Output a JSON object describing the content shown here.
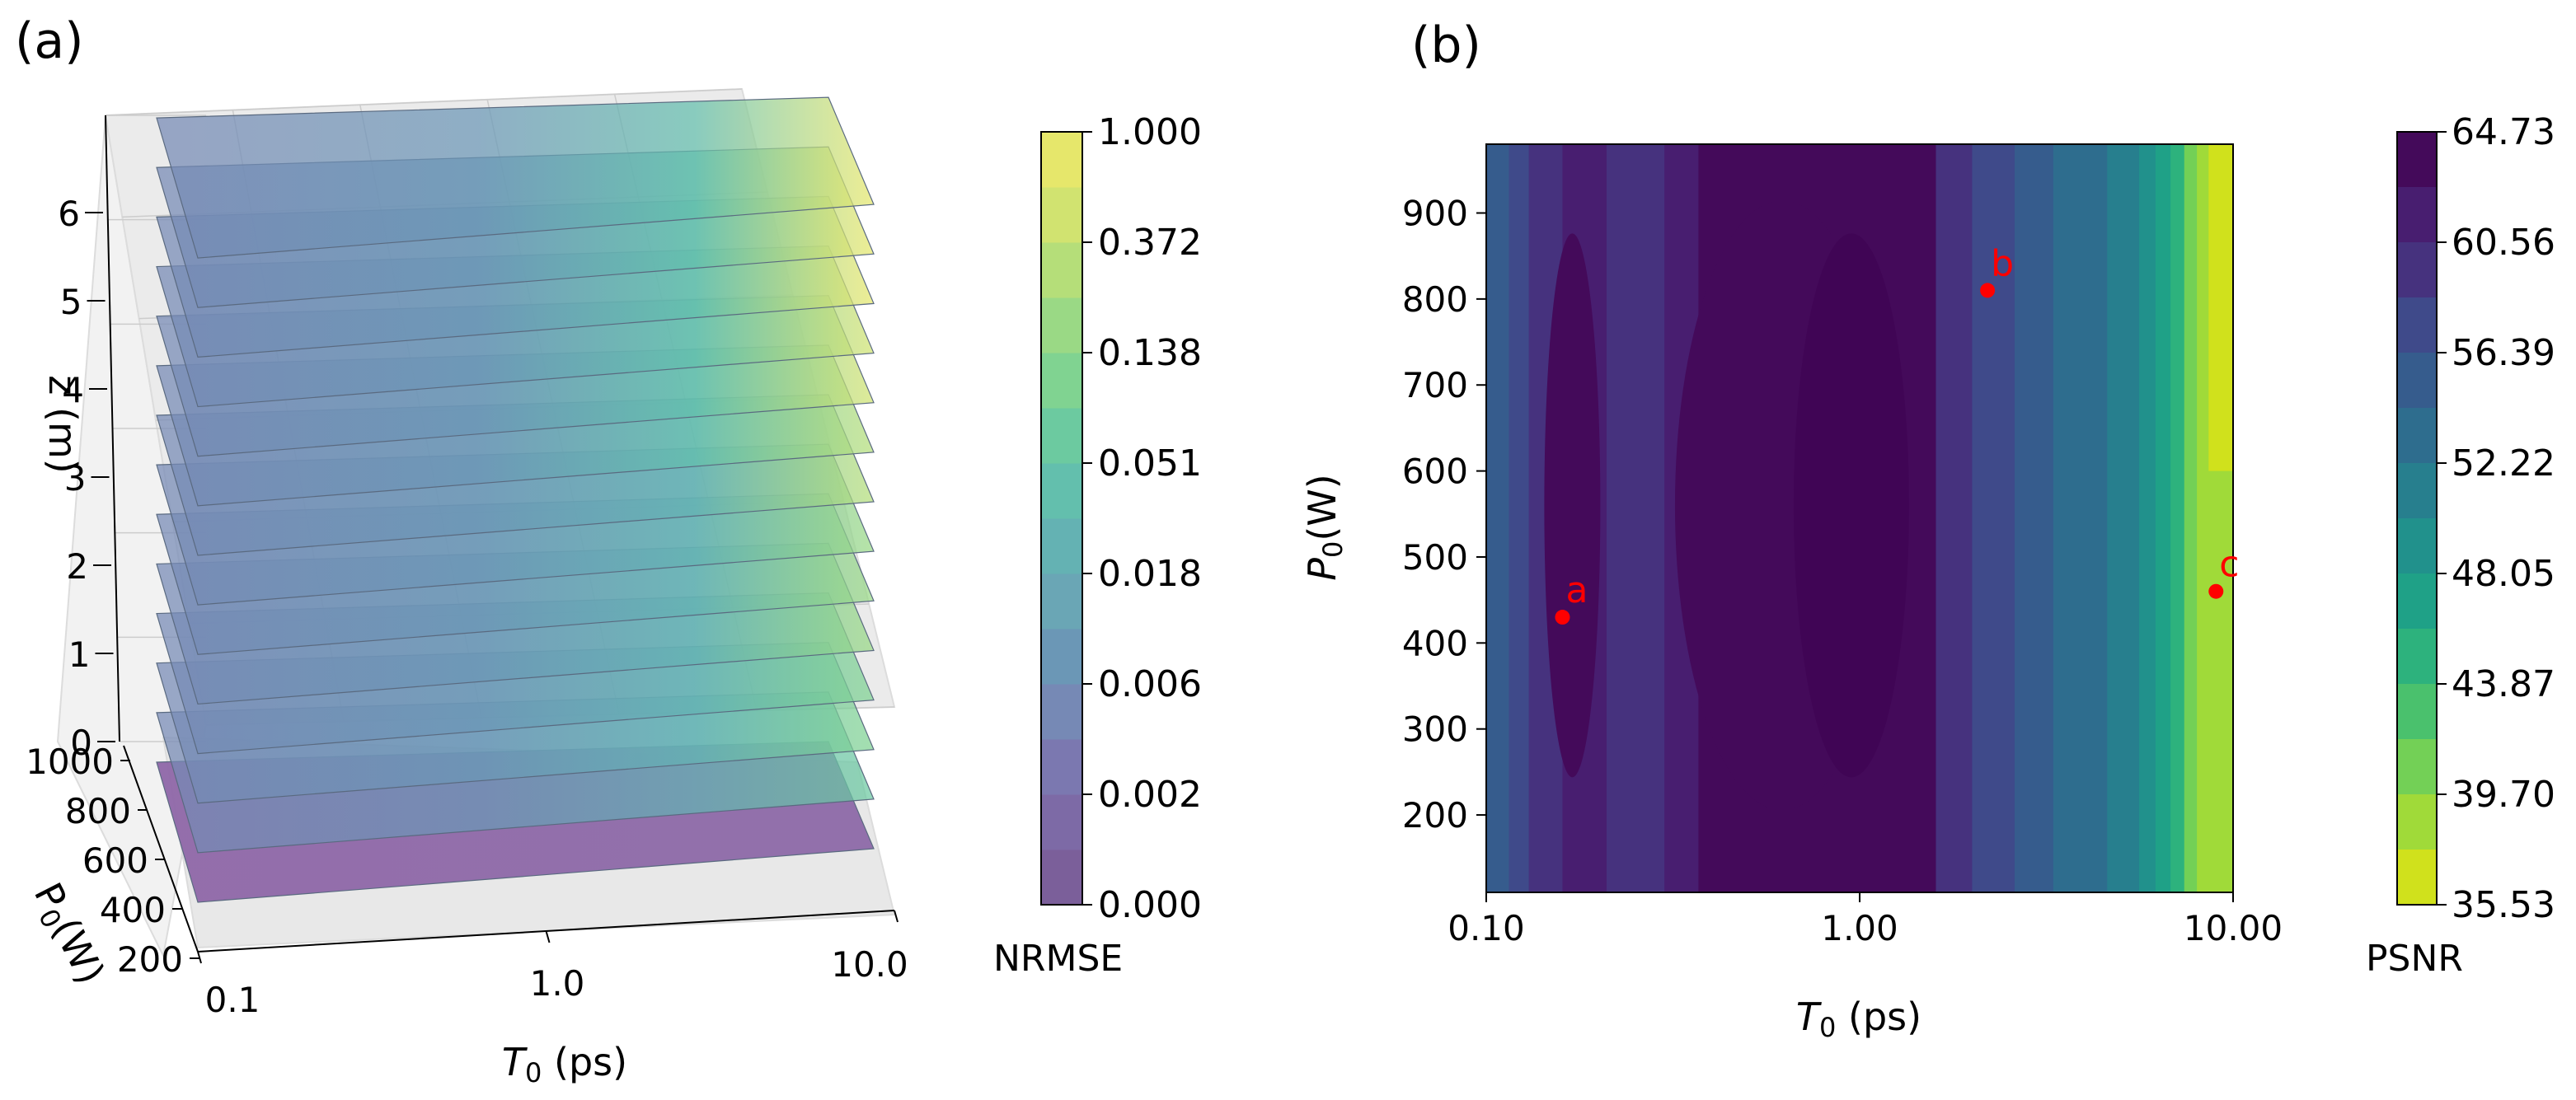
{
  "chart_data": [
    {
      "panel_label": "(a)",
      "type": "3d-stacked-contour",
      "xlabel_symbol": "T",
      "xlabel_sub": "0",
      "xlabel_unit": " (ps)",
      "x_ticks": [
        "0.1",
        "1.0",
        "10.0"
      ],
      "ylabel_symbol": "P",
      "ylabel_sub": "0",
      "ylabel_unit": "(W)",
      "y_ticks": [
        "200",
        "400",
        "600",
        "800",
        "1000"
      ],
      "zlabel": "z (m)",
      "z_ticks": [
        "0",
        "1",
        "2",
        "3",
        "4",
        "5",
        "6"
      ],
      "z_slices": [
        0,
        0.5,
        1.0,
        1.5,
        2.0,
        2.5,
        3.0,
        3.5,
        4.0,
        4.5,
        5.0,
        5.5,
        6.0,
        6.5
      ],
      "colorbar": {
        "label": "NRMSE",
        "ticks": [
          "0.000",
          "0.002",
          "0.006",
          "0.018",
          "0.051",
          "0.138",
          "0.372",
          "1.000"
        ],
        "colors": [
          "#7b5f9a",
          "#7d6aa6",
          "#7b78b0",
          "#7689b5",
          "#6b97b6",
          "#6aa6b5",
          "#64b2b3",
          "#63bfad",
          "#6ccaa0",
          "#80d391",
          "#9ad985",
          "#b5de79",
          "#d1e370",
          "#e6e76b"
        ]
      }
    },
    {
      "panel_label": "(b)",
      "type": "contourf",
      "xlabel_symbol": "T",
      "xlabel_sub": "0",
      "xlabel_unit": " (ps)",
      "x_scale": "log",
      "xlim": [
        0.1,
        10.0
      ],
      "x_ticks": [
        "0.10",
        "1.00",
        "10.00"
      ],
      "ylabel_symbol": "P",
      "ylabel_sub": "0",
      "ylabel_unit": "(W)",
      "ylim": [
        110,
        980
      ],
      "y_ticks": [
        "200",
        "300",
        "400",
        "500",
        "600",
        "700",
        "800",
        "900"
      ],
      "points": [
        {
          "label": "a",
          "x": 0.16,
          "y": 430
        },
        {
          "label": "b",
          "x": 2.2,
          "y": 810
        },
        {
          "label": "c",
          "x": 9.0,
          "y": 460
        }
      ],
      "colorbar": {
        "label": "PSNR",
        "ticks": [
          "64.73",
          "60.56",
          "56.39",
          "52.22",
          "48.05",
          "43.87",
          "39.70",
          "35.53"
        ],
        "colors": [
          "#440a5a",
          "#481e70",
          "#46327e",
          "#3f4a8a",
          "#365c8d",
          "#2e6d8e",
          "#277f8e",
          "#21918c",
          "#1fa187",
          "#2db27d",
          "#4ac16d",
          "#73d056",
          "#a0da39",
          "#d0e11c"
        ]
      }
    }
  ]
}
